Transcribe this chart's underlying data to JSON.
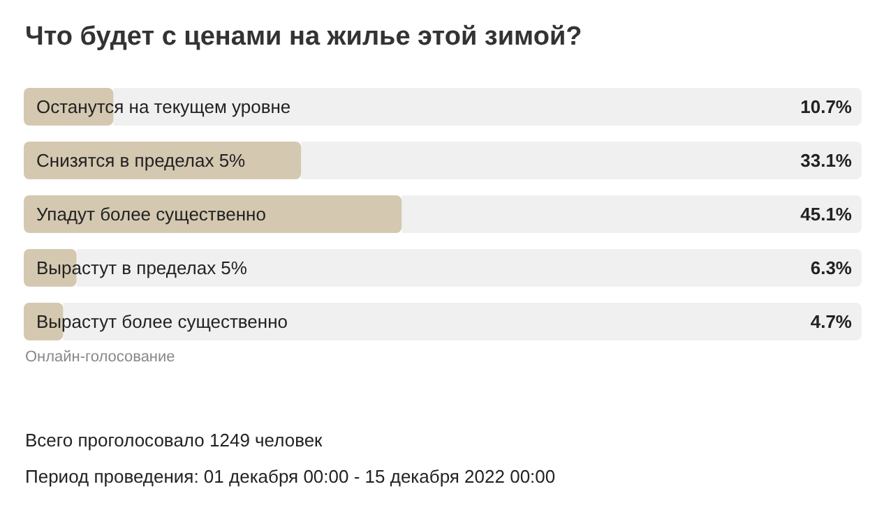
{
  "chart_data": {
    "type": "bar",
    "orientation": "horizontal",
    "title": "Что будет с ценами на жилье этой зимой?",
    "categories": [
      "Останутся на текущем уровне",
      "Снизятся в пределах 5%",
      "Упадут более существенно",
      "Вырастут в пределах 5%",
      "Вырастут более существенно"
    ],
    "values": [
      10.7,
      33.1,
      45.1,
      6.3,
      4.7
    ],
    "value_labels": [
      "10.7%",
      "33.1%",
      "45.1%",
      "6.3%",
      "4.7%"
    ],
    "color": "#d4c8b1",
    "xlim": [
      0,
      100
    ],
    "annotations": [
      "Онлайн-голосование",
      "Всего проголосовало 1249 человек",
      "Период проведения: 01 декабря 00:00 - 15 декабря 2022 00:00"
    ]
  }
}
